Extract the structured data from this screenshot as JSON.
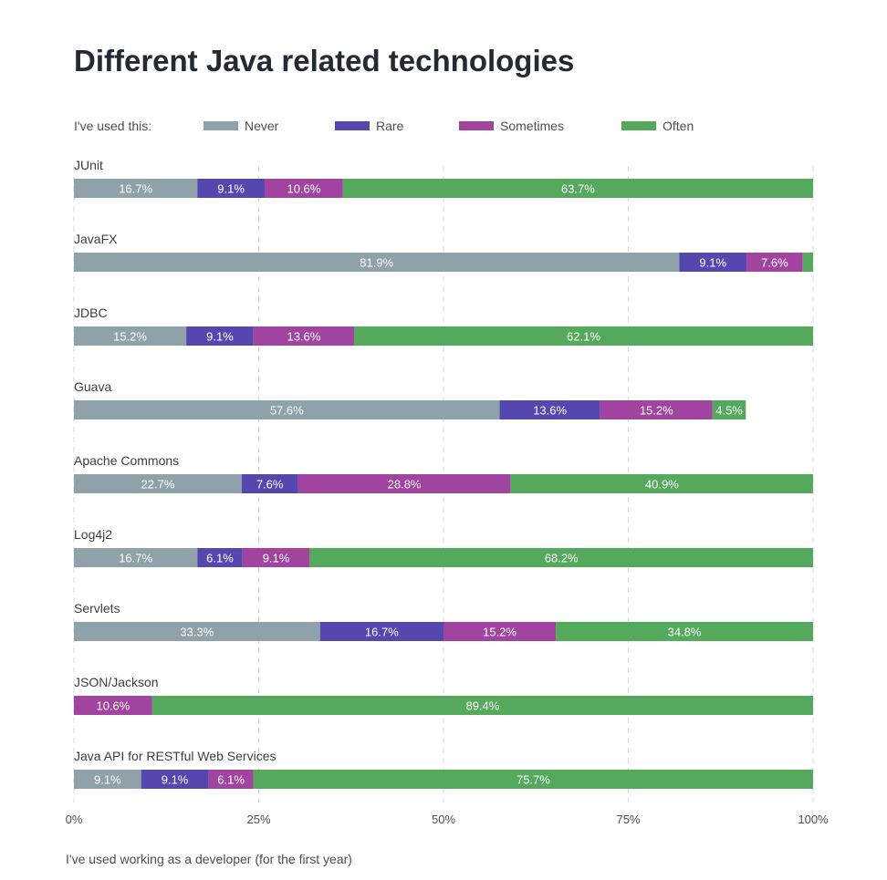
{
  "chart_data": {
    "type": "bar",
    "orientation": "horizontal",
    "stacked": true,
    "title": "Different Java related technologies",
    "legend_prefix": "I've used this:",
    "footnote": "I've used working as a developer (for the first year)",
    "xlim": [
      0,
      100
    ],
    "xticks": [
      "0%",
      "25%",
      "50%",
      "75%",
      "100%"
    ],
    "grid": "vertical dashed",
    "legend_position": "top",
    "series": [
      {
        "name": "Never",
        "color": "#8fa2a9"
      },
      {
        "name": "Rare",
        "color": "#5447ad"
      },
      {
        "name": "Sometimes",
        "color": "#a1449f"
      },
      {
        "name": "Often",
        "color": "#55a95c"
      }
    ],
    "categories": [
      {
        "name": "JUnit",
        "values": [
          16.7,
          9.1,
          10.6,
          63.7
        ],
        "labels": [
          "16.7%",
          "9.1%",
          "10.6%",
          "63.7%"
        ]
      },
      {
        "name": "JavaFX",
        "values": [
          81.9,
          9.1,
          7.6,
          1.4
        ],
        "labels": [
          "81.9%",
          "9.1%",
          "7.6%",
          ""
        ]
      },
      {
        "name": "JDBC",
        "values": [
          15.2,
          9.1,
          13.6,
          62.1
        ],
        "labels": [
          "15.2%",
          "9.1%",
          "13.6%",
          "62.1%"
        ]
      },
      {
        "name": "Guava",
        "values": [
          57.6,
          13.6,
          15.2,
          4.5
        ],
        "labels": [
          "57.6%",
          "13.6%",
          "15.2%",
          "4.5%"
        ]
      },
      {
        "name": "Apache Commons",
        "values": [
          22.7,
          7.6,
          28.8,
          40.9
        ],
        "labels": [
          "22.7%",
          "7.6%",
          "28.8%",
          "40.9%"
        ]
      },
      {
        "name": "Log4j2",
        "values": [
          16.7,
          6.1,
          9.1,
          68.2
        ],
        "labels": [
          "16.7%",
          "6.1%",
          "9.1%",
          "68.2%"
        ]
      },
      {
        "name": "Servlets",
        "values": [
          33.3,
          16.7,
          15.2,
          34.8
        ],
        "labels": [
          "33.3%",
          "16.7%",
          "15.2%",
          "34.8%"
        ]
      },
      {
        "name": "JSON/Jackson",
        "values": [
          0,
          0,
          10.6,
          89.4
        ],
        "labels": [
          "",
          "",
          "10.6%",
          "89.4%"
        ]
      },
      {
        "name": "Java API for RESTful Web Services",
        "values": [
          9.1,
          9.1,
          6.1,
          75.7
        ],
        "labels": [
          "9.1%",
          "9.1%",
          "6.1%",
          "75.7%"
        ]
      }
    ]
  }
}
